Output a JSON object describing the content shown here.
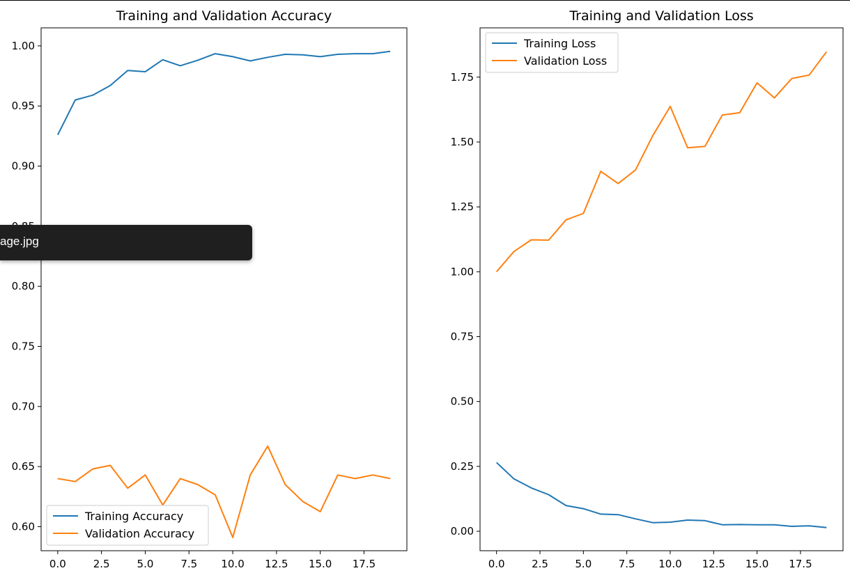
{
  "colors": {
    "training": "#1f77b4",
    "validation": "#ff7f0e"
  },
  "tooltip": {
    "text": "age.jpg"
  },
  "chart_data": [
    {
      "type": "line",
      "title": "Training and Validation Accuracy",
      "xlabel": "",
      "ylabel": "",
      "xlim": [
        -0.95,
        19.95
      ],
      "ylim": [
        0.58,
        1.015
      ],
      "xticks": [
        "0.0",
        "2.5",
        "5.0",
        "7.5",
        "10.0",
        "12.5",
        "15.0",
        "17.5"
      ],
      "xtick_values": [
        0,
        2.5,
        5,
        7.5,
        10,
        12.5,
        15,
        17.5
      ],
      "yticks": [
        "0.60",
        "0.65",
        "0.70",
        "0.75",
        "0.80",
        "0.85",
        "0.90",
        "0.95",
        "1.00"
      ],
      "ytick_values": [
        0.6,
        0.65,
        0.7,
        0.75,
        0.8,
        0.85,
        0.9,
        0.95,
        1.0
      ],
      "legend": "lower-left",
      "grid": false,
      "x": [
        0,
        1,
        2,
        3,
        4,
        5,
        6,
        7,
        8,
        9,
        10,
        11,
        12,
        13,
        14,
        15,
        16,
        17,
        18,
        19
      ],
      "series": [
        {
          "name": "Training Accuracy",
          "color": "#1f77b4",
          "values": [
            0.926,
            0.955,
            0.959,
            0.967,
            0.9795,
            0.9785,
            0.9885,
            0.9835,
            0.988,
            0.9935,
            0.991,
            0.9875,
            0.9905,
            0.993,
            0.9925,
            0.991,
            0.993,
            0.9935,
            0.9935,
            0.9955
          ]
        },
        {
          "name": "Validation Accuracy",
          "color": "#ff7f0e",
          "values": [
            0.64,
            0.6375,
            0.648,
            0.651,
            0.632,
            0.643,
            0.618,
            0.64,
            0.635,
            0.6265,
            0.591,
            0.643,
            0.667,
            0.635,
            0.621,
            0.6125,
            0.643,
            0.64,
            0.643,
            0.64
          ]
        }
      ]
    },
    {
      "type": "line",
      "title": "Training and Validation Loss",
      "xlabel": "",
      "ylabel": "",
      "xlim": [
        -0.95,
        19.95
      ],
      "ylim": [
        -0.075,
        1.94
      ],
      "xticks": [
        "0.0",
        "2.5",
        "5.0",
        "7.5",
        "10.0",
        "12.5",
        "15.0",
        "17.5"
      ],
      "xtick_values": [
        0,
        2.5,
        5,
        7.5,
        10,
        12.5,
        15,
        17.5
      ],
      "yticks": [
        "0.00",
        "0.25",
        "0.50",
        "0.75",
        "1.00",
        "1.25",
        "1.50",
        "1.75"
      ],
      "ytick_values": [
        0,
        0.25,
        0.5,
        0.75,
        1.0,
        1.25,
        1.5,
        1.75
      ],
      "legend": "upper-left",
      "grid": false,
      "x": [
        0,
        1,
        2,
        3,
        4,
        5,
        6,
        7,
        8,
        9,
        10,
        11,
        12,
        13,
        14,
        15,
        16,
        17,
        18,
        19
      ],
      "series": [
        {
          "name": "Training Loss",
          "color": "#1f77b4",
          "values": [
            0.265,
            0.202,
            0.167,
            0.141,
            0.099,
            0.087,
            0.066,
            0.064,
            0.048,
            0.033,
            0.035,
            0.043,
            0.041,
            0.025,
            0.026,
            0.025,
            0.025,
            0.019,
            0.021,
            0.014
          ]
        },
        {
          "name": "Validation Loss",
          "color": "#ff7f0e",
          "values": [
            1.0,
            1.078,
            1.123,
            1.122,
            1.2,
            1.225,
            1.387,
            1.34,
            1.392,
            1.525,
            1.637,
            1.478,
            1.483,
            1.604,
            1.613,
            1.728,
            1.67,
            1.745,
            1.758,
            1.848
          ]
        }
      ]
    }
  ]
}
